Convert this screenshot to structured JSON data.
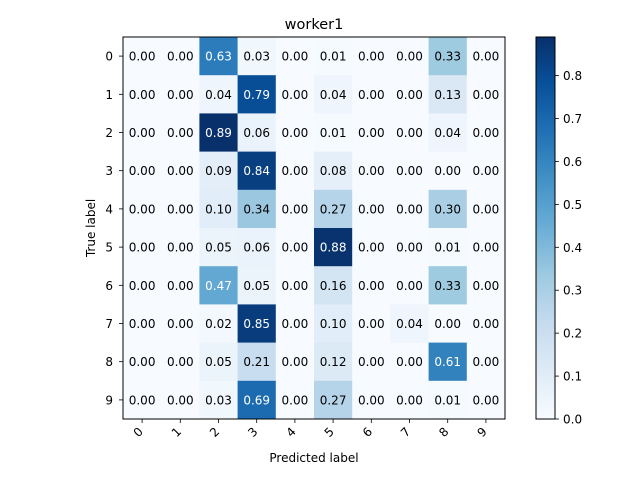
{
  "chart_data": {
    "type": "heatmap",
    "title": "worker1",
    "xlabel": "Predicted label",
    "ylabel": "True label",
    "x_categories": [
      "0",
      "1",
      "2",
      "3",
      "4",
      "5",
      "6",
      "7",
      "8",
      "9"
    ],
    "y_categories": [
      "0",
      "1",
      "2",
      "3",
      "4",
      "5",
      "6",
      "7",
      "8",
      "9"
    ],
    "values": [
      [
        0.0,
        0.0,
        0.63,
        0.03,
        0.0,
        0.01,
        0.0,
        0.0,
        0.33,
        0.0
      ],
      [
        0.0,
        0.0,
        0.04,
        0.79,
        0.0,
        0.04,
        0.0,
        0.0,
        0.13,
        0.0
      ],
      [
        0.0,
        0.0,
        0.89,
        0.06,
        0.0,
        0.01,
        0.0,
        0.0,
        0.04,
        0.0
      ],
      [
        0.0,
        0.0,
        0.09,
        0.84,
        0.0,
        0.08,
        0.0,
        0.0,
        0.0,
        0.0
      ],
      [
        0.0,
        0.0,
        0.1,
        0.34,
        0.0,
        0.27,
        0.0,
        0.0,
        0.3,
        0.0
      ],
      [
        0.0,
        0.0,
        0.05,
        0.06,
        0.0,
        0.88,
        0.0,
        0.0,
        0.01,
        0.0
      ],
      [
        0.0,
        0.0,
        0.47,
        0.05,
        0.0,
        0.16,
        0.0,
        0.0,
        0.33,
        0.0
      ],
      [
        0.0,
        0.0,
        0.02,
        0.85,
        0.0,
        0.1,
        0.0,
        0.04,
        0.0,
        0.0
      ],
      [
        0.0,
        0.0,
        0.05,
        0.21,
        0.0,
        0.12,
        0.0,
        0.0,
        0.61,
        0.0
      ],
      [
        0.0,
        0.0,
        0.03,
        0.69,
        0.0,
        0.27,
        0.0,
        0.0,
        0.01,
        0.0
      ]
    ],
    "colormap": "Blues",
    "colorbar": {
      "range": [
        0.0,
        0.89
      ],
      "ticks": [
        "0.0",
        "0.1",
        "0.2",
        "0.3",
        "0.4",
        "0.5",
        "0.6",
        "0.7",
        "0.8"
      ]
    },
    "x_tick_rotation_deg": 45,
    "text_color_dark": "#000000",
    "text_color_light": "#ffffff"
  }
}
